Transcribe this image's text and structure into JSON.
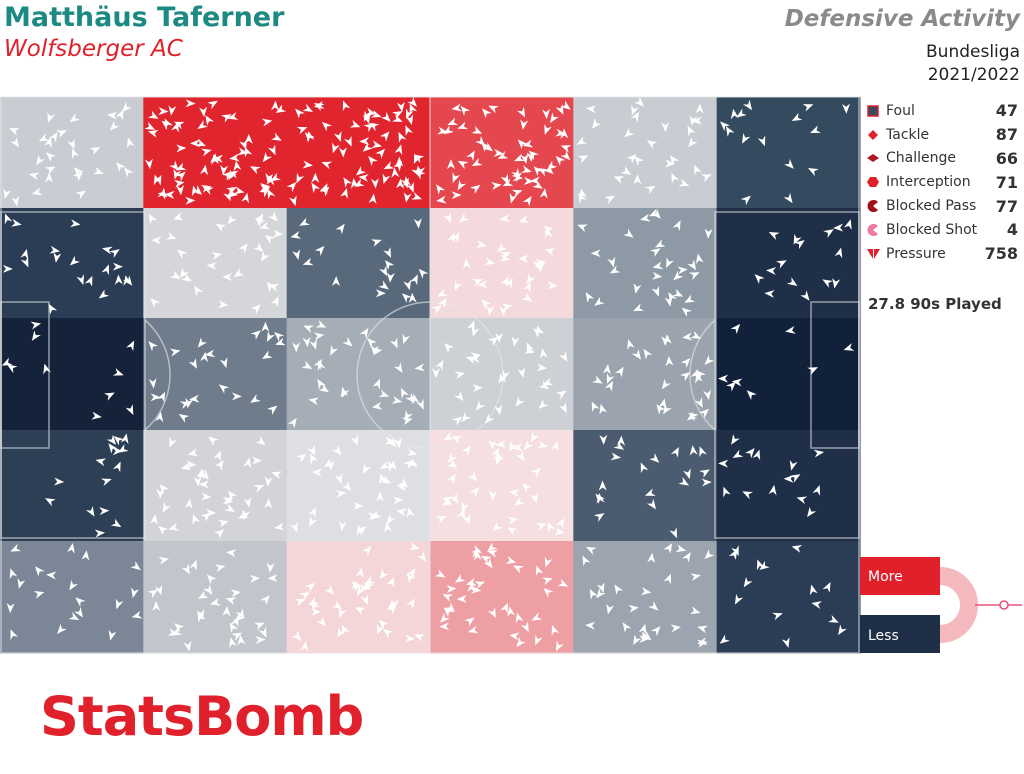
{
  "header": {
    "player": "Matthäus Taferner",
    "team": "Wolfsberger AC",
    "title": "Defensive Activity",
    "competition": "Bundesliga",
    "season": "2021/2022"
  },
  "legend": [
    {
      "label": "Foul",
      "count": 47
    },
    {
      "label": "Tackle",
      "count": 87
    },
    {
      "label": "Challenge",
      "count": 66
    },
    {
      "label": "Interception",
      "count": 71
    },
    {
      "label": "Blocked Pass",
      "count": 77
    },
    {
      "label": "Blocked Shot",
      "count": 4
    },
    {
      "label": "Pressure",
      "count": 758
    }
  ],
  "played": "27.8 90s Played",
  "scale": {
    "more": "More",
    "less": "Less"
  },
  "logo": "StatsBomb"
}
